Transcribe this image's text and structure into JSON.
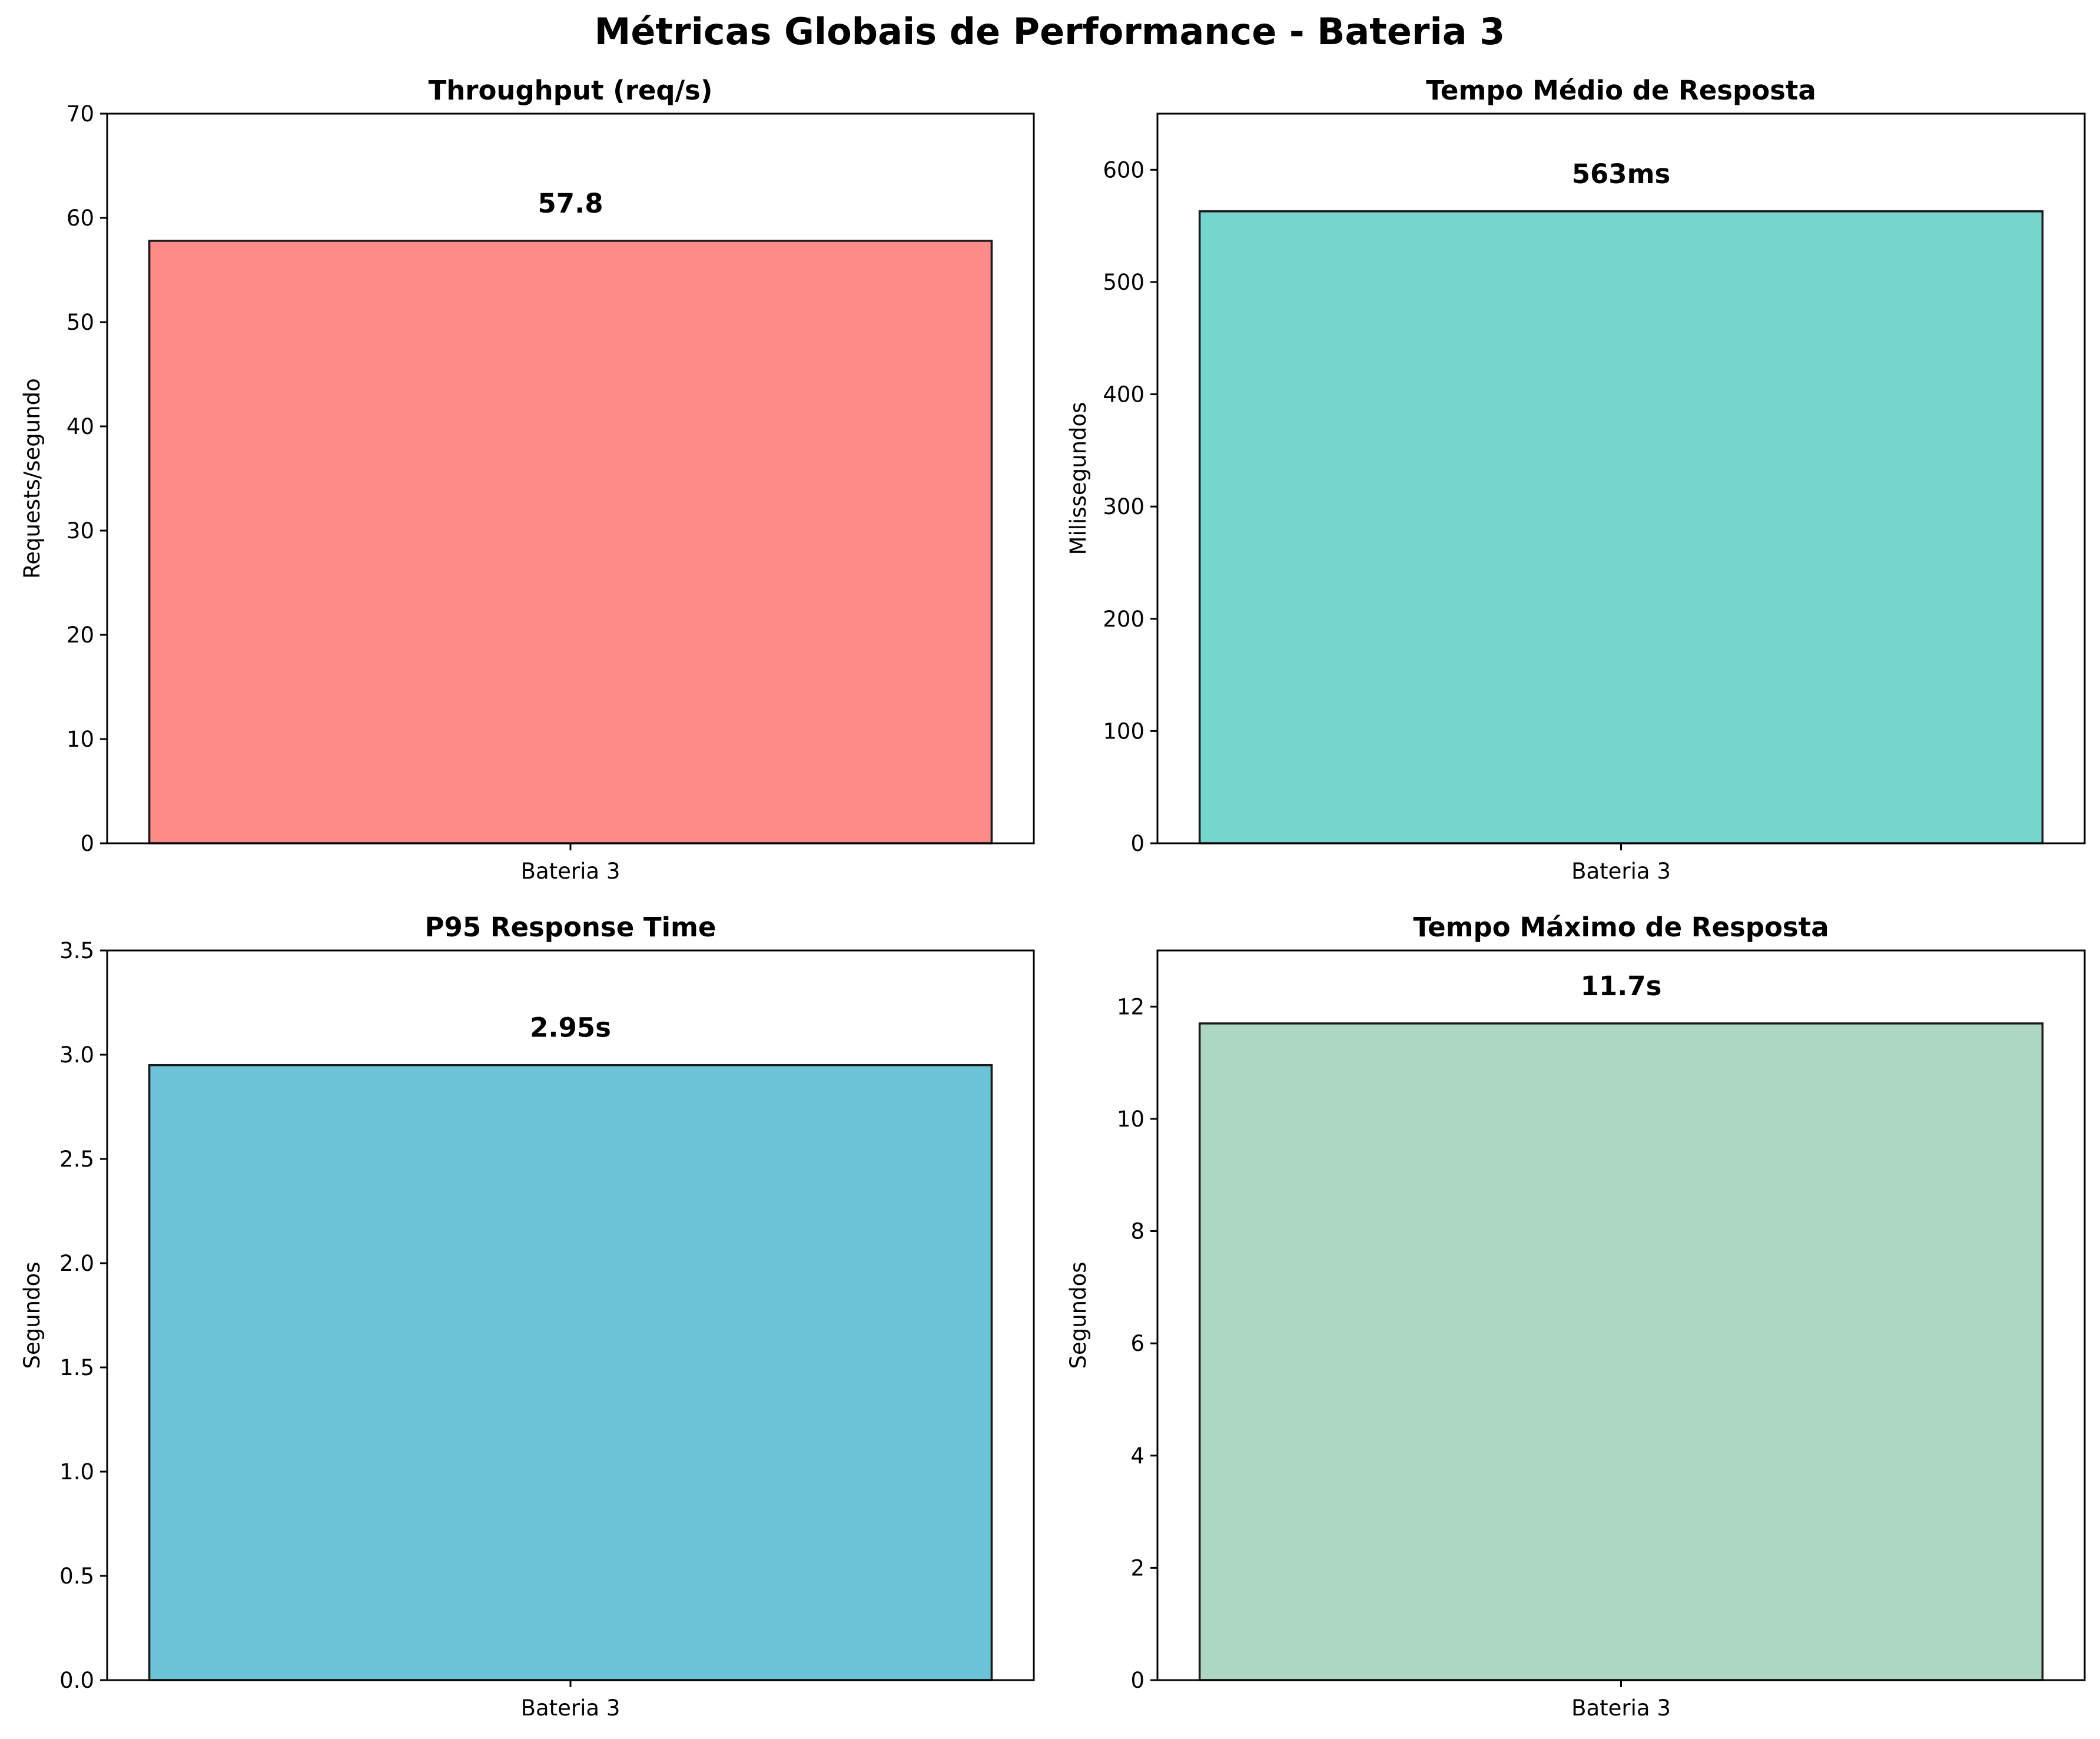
{
  "figure_title": "Métricas Globais de Performance - Bateria 3",
  "chart_data": [
    {
      "type": "bar",
      "title": "Throughput (req/s)",
      "categories": [
        "Bateria 3"
      ],
      "values": [
        57.8
      ],
      "data_labels": [
        "57.8"
      ],
      "xlabel": "",
      "ylabel": "Requests/segundo",
      "ylim": [
        0,
        70
      ],
      "yticks": [
        0,
        10,
        20,
        30,
        40,
        50,
        60,
        70
      ],
      "ytick_labels": [
        "0",
        "10",
        "20",
        "30",
        "40",
        "50",
        "60",
        "70"
      ],
      "color": "#FF8A8A",
      "grid": false
    },
    {
      "type": "bar",
      "title": "Tempo Médio de Resposta",
      "categories": [
        "Bateria 3"
      ],
      "values": [
        563
      ],
      "data_labels": [
        "563ms"
      ],
      "xlabel": "",
      "ylabel": "Milissegundos",
      "ylim": [
        0,
        650
      ],
      "yticks": [
        0,
        100,
        200,
        300,
        400,
        500,
        600
      ],
      "ytick_labels": [
        "0",
        "100",
        "200",
        "300",
        "400",
        "500",
        "600"
      ],
      "color": "#76D6CF",
      "grid": false
    },
    {
      "type": "bar",
      "title": "P95 Response Time",
      "categories": [
        "Bateria 3"
      ],
      "values": [
        2.95
      ],
      "data_labels": [
        "2.95s"
      ],
      "xlabel": "",
      "ylabel": "Segundos",
      "ylim": [
        0,
        3.5
      ],
      "yticks": [
        0,
        0.5,
        1,
        1.5,
        2,
        2.5,
        3,
        3.5
      ],
      "ytick_labels": [
        "0.0",
        "0.5",
        "1.0",
        "1.5",
        "2.0",
        "2.5",
        "3.0",
        "3.5"
      ],
      "color": "#6BC3D8",
      "grid": false
    },
    {
      "type": "bar",
      "title": "Tempo Máximo de Resposta",
      "categories": [
        "Bateria 3"
      ],
      "values": [
        11.7
      ],
      "data_labels": [
        "11.7s"
      ],
      "xlabel": "",
      "ylabel": "Segundos",
      "ylim": [
        0,
        13
      ],
      "yticks": [
        0,
        2,
        4,
        6,
        8,
        10,
        12
      ],
      "ytick_labels": [
        "0",
        "2",
        "4",
        "6",
        "8",
        "10",
        "12"
      ],
      "color": "#AED7C3",
      "grid": false
    }
  ]
}
